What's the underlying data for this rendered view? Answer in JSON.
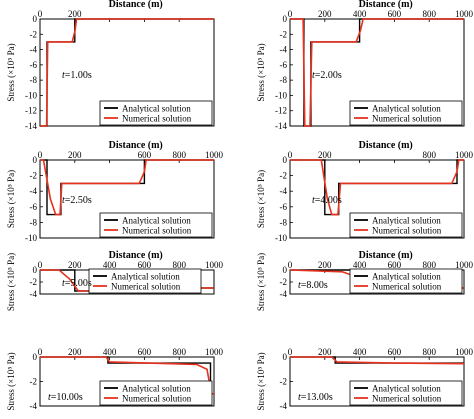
{
  "figure": {
    "series_colors": {
      "analytical": "#000000",
      "numerical": "#e8311d"
    }
  },
  "chart_data": [
    {
      "type": "line",
      "time_label": "t=1.00s",
      "xlabel": "Distance (m)",
      "ylabel": "Stress (×10⁵ Pa)",
      "xlim": [
        0,
        1000
      ],
      "ylim": [
        -14,
        0
      ],
      "xticks": [
        0,
        200,
        400,
        600,
        800,
        1000
      ],
      "xtick_labels": [
        "0",
        "200",
        "",
        "",
        "",
        ""
      ],
      "yticks": [
        0,
        -2,
        -4,
        -6,
        -8,
        -10,
        -12,
        -14
      ],
      "legend": [
        "Analytical solution",
        "Numerical solution"
      ],
      "legend_position": "bottom-right",
      "series": [
        {
          "name": "Analytical solution",
          "color": "#000000",
          "x": [
            0,
            40,
            40,
            200,
            200,
            1000
          ],
          "y": [
            -14,
            -14,
            -3,
            -3,
            0,
            0
          ]
        },
        {
          "name": "Numerical solution",
          "color": "#e8311d",
          "x": [
            0,
            38,
            44,
            185,
            202,
            210,
            1000
          ],
          "y": [
            -14,
            -14,
            -3,
            -3,
            -1.5,
            0,
            0
          ]
        }
      ]
    },
    {
      "type": "line",
      "time_label": "t=2.00s",
      "xlabel": "Distance (m)",
      "ylabel": "Stress (×10⁵ Pa)",
      "xlim": [
        0,
        1000
      ],
      "ylim": [
        -14,
        0
      ],
      "xticks": [
        0,
        200,
        400,
        600,
        800,
        1000
      ],
      "xtick_labels": [
        "0",
        "200",
        "400",
        "600",
        "800",
        "1000"
      ],
      "yticks": [
        0,
        -2,
        -4,
        -6,
        -8,
        -10,
        -12,
        -14
      ],
      "legend": [
        "Analytical solution",
        "Numerical solution"
      ],
      "legend_position": "bottom-right",
      "series": [
        {
          "name": "Analytical solution",
          "color": "#000000",
          "x": [
            0,
            80,
            80,
            120,
            120,
            400,
            400,
            1000
          ],
          "y": [
            0,
            0,
            -14,
            -14,
            -3,
            -3,
            0,
            0
          ]
        },
        {
          "name": "Numerical solution",
          "color": "#e8311d",
          "x": [
            0,
            75,
            85,
            115,
            125,
            380,
            405,
            420,
            1000
          ],
          "y": [
            0,
            0,
            -14,
            -14,
            -3,
            -3,
            -1.5,
            0,
            0
          ]
        }
      ]
    },
    {
      "type": "line",
      "time_label": "t=2.50s",
      "xlabel": "Distance (m)",
      "ylabel": "Stress (×10⁵ Pa)",
      "xlim": [
        0,
        1000
      ],
      "ylim": [
        -10,
        0
      ],
      "xticks": [
        0,
        200,
        400,
        600,
        800,
        1000
      ],
      "xtick_labels": [
        "0",
        "200",
        "",
        "600",
        "800",
        "1000"
      ],
      "yticks": [
        0,
        -2,
        -4,
        -6,
        -8,
        -10
      ],
      "legend": [
        "Analytical solution",
        "Numerical solution"
      ],
      "legend_position": "bottom-right",
      "series": [
        {
          "name": "Analytical solution",
          "color": "#000000",
          "x": [
            0,
            40,
            40,
            120,
            120,
            600,
            600,
            1000
          ],
          "y": [
            0,
            0,
            -7,
            -7,
            -3,
            -3,
            0,
            0
          ]
        },
        {
          "name": "Numerical solution",
          "color": "#e8311d",
          "x": [
            0,
            20,
            60,
            90,
            115,
            125,
            570,
            600,
            610,
            1000
          ],
          "y": [
            0,
            0,
            -5,
            -7,
            -7,
            -3,
            -3,
            -1.5,
            0,
            0
          ]
        }
      ]
    },
    {
      "type": "line",
      "time_label": "t=4.00s",
      "xlabel": "Distance (m)",
      "ylabel": "Stress (×10⁵ Pa)",
      "xlim": [
        0,
        1000
      ],
      "ylim": [
        -10,
        0
      ],
      "xticks": [
        0,
        200,
        400,
        600,
        800,
        1000
      ],
      "xtick_labels": [
        "0",
        "200",
        "",
        "",
        "800",
        "1000"
      ],
      "yticks": [
        0,
        -2,
        -4,
        -6,
        -8,
        -10
      ],
      "legend": [
        "Analytical solution",
        "Numerical solution"
      ],
      "legend_position": "bottom-right",
      "series": [
        {
          "name": "Analytical solution",
          "color": "#000000",
          "x": [
            0,
            200,
            200,
            280,
            280,
            960,
            960,
            1000
          ],
          "y": [
            0,
            0,
            -7,
            -7,
            -3,
            -3,
            0,
            0
          ]
        },
        {
          "name": "Numerical solution",
          "color": "#e8311d",
          "x": [
            0,
            180,
            215,
            240,
            275,
            290,
            930,
            960,
            970,
            1000
          ],
          "y": [
            0,
            0,
            -5,
            -7,
            -7,
            -3,
            -3,
            -1.5,
            0,
            0
          ]
        }
      ]
    },
    {
      "type": "line",
      "time_label": "t=5.00s",
      "xlabel": "Distance (m)",
      "ylabel": "Stress (×10⁵ Pa)",
      "xlim": [
        0,
        1000
      ],
      "ylim": [
        -4,
        0
      ],
      "xticks": [
        0,
        200,
        400,
        600,
        800,
        1000
      ],
      "xtick_labels": [
        "0",
        "200",
        "400",
        "600",
        "800",
        "1000"
      ],
      "yticks": [
        0,
        -2,
        -4
      ],
      "legend": [
        "Analytical solution",
        "Numerical solution"
      ],
      "legend_position": "bottom-left",
      "series": [
        {
          "name": "Analytical solution",
          "color": "#000000",
          "x": [
            0,
            200,
            200,
            330,
            330,
            1000
          ],
          "y": [
            0,
            0,
            -3.5,
            -3.5,
            -3,
            -3
          ]
        },
        {
          "name": "Numerical solution",
          "color": "#e8311d",
          "x": [
            0,
            110,
            170,
            220,
            330,
            345,
            1000
          ],
          "y": [
            0,
            0,
            -1.5,
            -3.5,
            -3.5,
            -3,
            -3
          ]
        }
      ]
    },
    {
      "type": "line",
      "time_label": "t=8.00s",
      "xlabel": "Distance (m)",
      "ylabel": "Stress (×10⁵ Pa)",
      "xlim": [
        0,
        1000
      ],
      "ylim": [
        -4,
        0
      ],
      "xticks": [
        0,
        200,
        400,
        600,
        800,
        1000
      ],
      "xtick_labels": [
        "0",
        "200",
        "400",
        "600",
        "800",
        "1000"
      ],
      "yticks": [
        0,
        -2,
        -4
      ],
      "legend": [
        "Analytical solution",
        "Numerical solution"
      ],
      "legend_position": "bottom-right",
      "series": [
        {
          "name": "Analytical solution",
          "color": "#000000",
          "x": [
            0,
            490,
            490,
            640,
            640,
            1000
          ],
          "y": [
            0,
            0,
            -3.5,
            -3.5,
            -3,
            -3
          ]
        },
        {
          "name": "Numerical solution",
          "color": "#e8311d",
          "x": [
            0,
            300,
            420,
            530,
            640,
            655,
            1000
          ],
          "y": [
            0,
            -0.3,
            -1.5,
            -3.5,
            -3.5,
            -3,
            -3
          ]
        }
      ]
    },
    {
      "type": "line",
      "time_label": "t=10.00s",
      "xlabel": "",
      "ylabel": "Stress (×10⁵ Pa)",
      "xlim": [
        0,
        1000
      ],
      "ylim": [
        -4,
        0
      ],
      "xticks": [
        0,
        200,
        400,
        600,
        800,
        1000
      ],
      "xtick_labels": [
        "0",
        "200",
        "400",
        "600",
        "800",
        "1000"
      ],
      "yticks": [
        0,
        -2,
        -4
      ],
      "legend": [
        "Analytical solution",
        "Numerical solution"
      ],
      "legend_position": "bottom-right",
      "series": [
        {
          "name": "Analytical solution",
          "color": "#000000",
          "x": [
            0,
            390,
            390,
            980,
            980,
            1000
          ],
          "y": [
            0,
            0,
            -0.5,
            -0.5,
            -3,
            -3
          ]
        },
        {
          "name": "Numerical solution",
          "color": "#e8311d",
          "x": [
            0,
            380,
            400,
            900,
            960,
            985,
            1000
          ],
          "y": [
            0,
            0,
            -0.4,
            -0.6,
            -1.0,
            -3,
            -3
          ]
        }
      ]
    },
    {
      "type": "line",
      "time_label": "t=13.00s",
      "xlabel": "",
      "ylabel": "Stress (×10⁵ Pa)",
      "xlim": [
        0,
        1000
      ],
      "ylim": [
        -4,
        0
      ],
      "xticks": [
        0,
        200,
        400,
        600,
        800,
        1000
      ],
      "xtick_labels": [
        "0",
        "200",
        "400",
        "600",
        "800",
        "1000"
      ],
      "yticks": [
        0,
        -2,
        -4
      ],
      "legend": [
        "Analytical solution",
        "Numerical solution"
      ],
      "legend_position": "bottom-right",
      "series": [
        {
          "name": "Analytical solution",
          "color": "#000000",
          "x": [
            0,
            260,
            260,
            1000
          ],
          "y": [
            0,
            0,
            -0.5,
            -0.5
          ]
        },
        {
          "name": "Numerical solution",
          "color": "#e8311d",
          "x": [
            0,
            240,
            270,
            600,
            1000
          ],
          "y": [
            0,
            0,
            -0.4,
            -0.5,
            -0.55
          ]
        }
      ]
    }
  ]
}
